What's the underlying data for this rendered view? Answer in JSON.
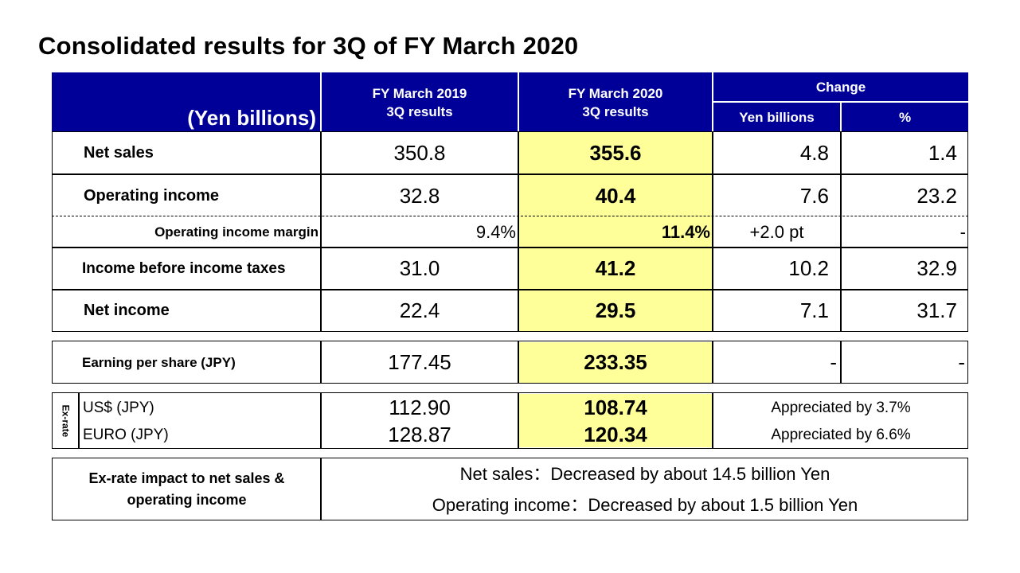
{
  "title": "Consolidated results for 3Q of FY March 2020",
  "header": {
    "unit": "(Yen billions)",
    "col1": [
      "FY March 2019",
      "3Q results"
    ],
    "col2": [
      "FY March 2020",
      "3Q results"
    ],
    "change": "Change",
    "change_yen": "Yen billions",
    "change_pct": "%"
  },
  "rows": {
    "net_sales": {
      "label": "Net sales",
      "prev": "350.8",
      "curr": "355.6",
      "chg": "4.8",
      "pct": "1.4"
    },
    "operating_income": {
      "label": "Operating income",
      "prev": "32.8",
      "curr": "40.4",
      "chg": "7.6",
      "pct": "23.2"
    },
    "margin": {
      "label": "Operating income margin",
      "prev": "9.4%",
      "curr": "11.4%",
      "chg": "+2.0 pt",
      "pct": "-"
    },
    "income_before_tax": {
      "label": "Income before income taxes",
      "prev": "31.0",
      "curr": "41.2",
      "chg": "10.2",
      "pct": "32.9"
    },
    "net_income": {
      "label": "Net income",
      "prev": "22.4",
      "curr": "29.5",
      "chg": "7.1",
      "pct": "31.7"
    }
  },
  "eps": {
    "label": "Earning per share (JPY)",
    "prev": "177.45",
    "curr": "233.35",
    "chg": "-",
    "pct": "-"
  },
  "exrate": {
    "side_label": "Ex-rate",
    "usd": {
      "label": "US$ (JPY)",
      "prev": "112.90",
      "curr": "108.74",
      "note": "Appreciated by 3.7%"
    },
    "euro": {
      "label": "EURO (JPY)",
      "prev": "128.87",
      "curr": "120.34",
      "note": "Appreciated by 6.6%"
    }
  },
  "impact": {
    "label": [
      "Ex-rate impact to net sales &",
      "operating income"
    ],
    "lines": [
      "Net sales：Decreased by about 14.5 billion Yen",
      "Operating income：Decreased by about 1.5 billion Yen"
    ]
  }
}
